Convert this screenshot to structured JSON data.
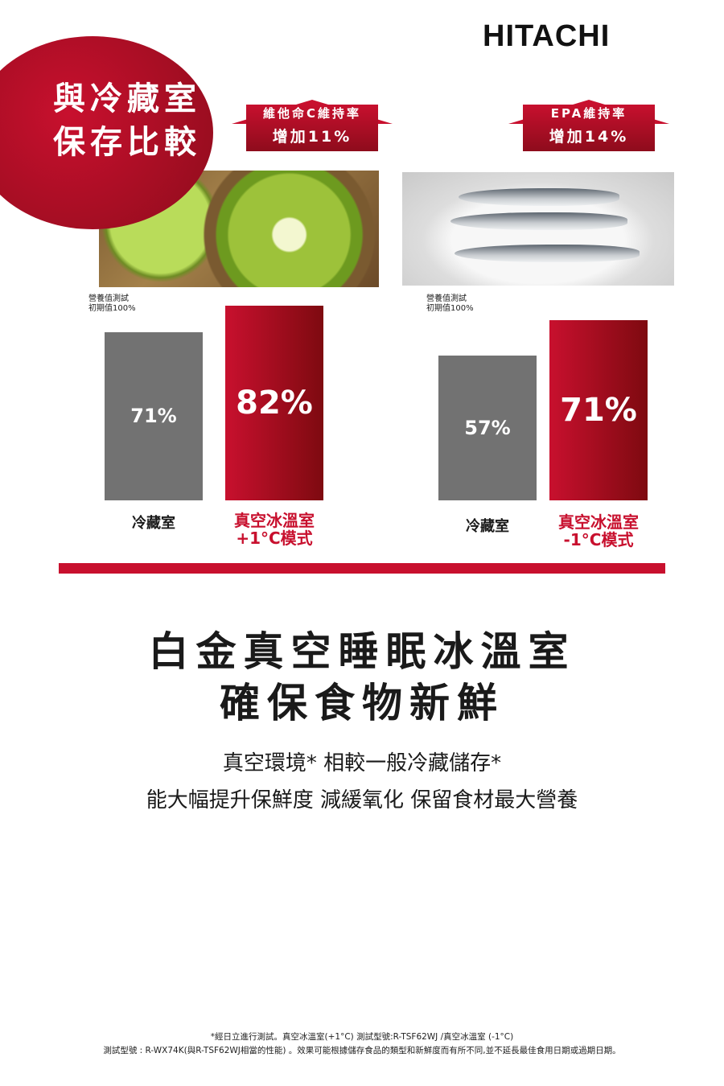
{
  "brand": "HITACHI",
  "badge": {
    "line1": "與冷藏室",
    "line2": "保存比較"
  },
  "arrows": [
    {
      "line1": "維他命C維持率",
      "line2": "增加11%"
    },
    {
      "line1": "EPA維持率",
      "line2": "增加14%"
    }
  ],
  "colors": {
    "accent": "#c8102e",
    "grey_bar": "#727272"
  },
  "chart_data": [
    {
      "type": "bar",
      "note": [
        "營養值測試",
        "初期值100%"
      ],
      "categories": [
        "冷藏室",
        "真空冰溫室\n+1°C模式"
      ],
      "values": [
        71,
        82
      ],
      "labels": [
        "71%",
        "82%"
      ],
      "unit": "%",
      "ylim": [
        0,
        100
      ]
    },
    {
      "type": "bar",
      "note": [
        "營養值測試",
        "初期值100%"
      ],
      "categories": [
        "冷藏室",
        "真空冰溫室\n-1°C模式"
      ],
      "values": [
        57,
        71
      ],
      "labels": [
        "57%",
        "71%"
      ],
      "unit": "%",
      "ylim": [
        0,
        100
      ]
    }
  ],
  "headline": {
    "line1": "白金真空睡眠冰溫室",
    "line2": "確保食物新鮮"
  },
  "subtext": {
    "line1": "真空環境* 相較一般冷藏儲存*",
    "line2": "能大幅提升保鮮度 減緩氧化 保留食材最大營養"
  },
  "footnote": {
    "line1": "*經日立進行測試。真空冰溫室(+1°C) 測試型號:R-TSF62WJ /真空冰溫室 (-1°C)",
    "line2": "測試型號 : R-WX74K(與R-TSF62WJ相當的性能) 。效果可能根據儲存食品的類型和新鮮度而有所不同,並不延長最佳食用日期或過期日期。"
  }
}
